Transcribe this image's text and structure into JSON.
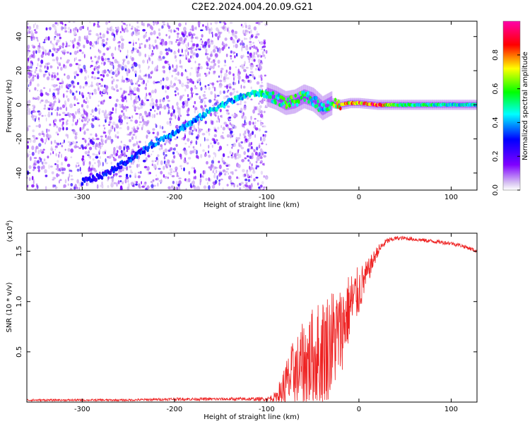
{
  "title": "C2E2.2024.004.20.09.G21",
  "chart_data": [
    {
      "type": "heatmap",
      "title": "C2E2.2024.004.20.09.G21",
      "xlabel": "Height of straight line (km)",
      "ylabel": "Frequency (Hz)",
      "xlim": [
        -360,
        128
      ],
      "ylim": [
        -50,
        49
      ],
      "xticks": [
        -300,
        -200,
        -100,
        0,
        100
      ],
      "yticks": [
        -40,
        -20,
        0,
        20,
        40
      ],
      "colorbar": {
        "label": "Normalized spectral amplitude",
        "range": [
          0,
          1
        ],
        "ticks": [
          "0.0",
          "0.2",
          "0.4",
          "0.6",
          "0.8"
        ],
        "tick_values": [
          0,
          0.2,
          0.4,
          0.6,
          0.8
        ],
        "colors": [
          "#ffffff",
          "#7f00ff",
          "#0000ff",
          "#00ffff",
          "#00ff00",
          "#ffff00",
          "#ff0000",
          "#ff00aa"
        ]
      },
      "noise_region": {
        "x_from": -360,
        "x_to": -100,
        "freq_from": -50,
        "freq_to": 49
      },
      "signal_track": {
        "x": [
          -300,
          -280,
          -260,
          -240,
          -220,
          -200,
          -180,
          -160,
          -140,
          -120,
          -110,
          -100,
          -90,
          -80,
          -70,
          -60,
          -50,
          -40,
          -30,
          -20,
          -10,
          0,
          20,
          40,
          60,
          80,
          100,
          128
        ],
        "freq": [
          -45,
          -42,
          -36,
          -29,
          -22,
          -16,
          -10,
          -3,
          2,
          6,
          7,
          6,
          4,
          1,
          2,
          5,
          3,
          -2,
          1,
          0,
          1,
          1,
          0,
          0,
          0,
          0,
          0,
          0
        ],
        "amplitude": [
          0.3,
          0.3,
          0.35,
          0.35,
          0.4,
          0.4,
          0.4,
          0.45,
          0.45,
          0.5,
          0.5,
          0.55,
          0.55,
          0.6,
          0.6,
          0.6,
          0.55,
          0.5,
          0.6,
          0.8,
          0.85,
          0.9,
          0.95,
          0.6,
          0.55,
          0.55,
          0.5,
          0.5
        ]
      }
    },
    {
      "type": "line",
      "xlabel": "Height of straight line (km)",
      "ylabel": "SNR (10 * v/v)",
      "y_multiplier": "(x10^4)",
      "xlim": [
        -360,
        128
      ],
      "ylim": [
        0,
        1.68
      ],
      "xticks": [
        -300,
        -200,
        -100,
        0,
        100
      ],
      "yticks": [
        0.5,
        1.0,
        1.5
      ],
      "ytick_labels": [
        "0.5",
        "1.0",
        "1.5"
      ],
      "color": "#ee2222",
      "series": [
        {
          "x": [
            -360,
            -300,
            -250,
            -200,
            -150,
            -100,
            -90,
            -80,
            -70,
            -60,
            -50,
            -40,
            -30,
            -20,
            -10,
            0,
            10,
            20,
            30,
            40,
            50,
            60,
            70,
            80,
            90,
            100,
            110,
            120,
            128
          ],
          "mean": [
            0.02,
            0.02,
            0.02,
            0.03,
            0.03,
            0.03,
            0.05,
            0.15,
            0.3,
            0.35,
            0.45,
            0.5,
            0.6,
            0.7,
            0.95,
            1.1,
            1.3,
            1.5,
            1.6,
            1.63,
            1.63,
            1.62,
            1.61,
            1.6,
            1.59,
            1.58,
            1.56,
            1.53,
            1.5
          ],
          "spread": [
            0.01,
            0.01,
            0.01,
            0.015,
            0.015,
            0.02,
            0.05,
            0.25,
            0.35,
            0.45,
            0.5,
            0.55,
            0.55,
            0.45,
            0.35,
            0.25,
            0.12,
            0.06,
            0.03,
            0.02,
            0.02,
            0.02,
            0.02,
            0.02,
            0.02,
            0.02,
            0.02,
            0.02,
            0.02
          ]
        }
      ]
    }
  ]
}
